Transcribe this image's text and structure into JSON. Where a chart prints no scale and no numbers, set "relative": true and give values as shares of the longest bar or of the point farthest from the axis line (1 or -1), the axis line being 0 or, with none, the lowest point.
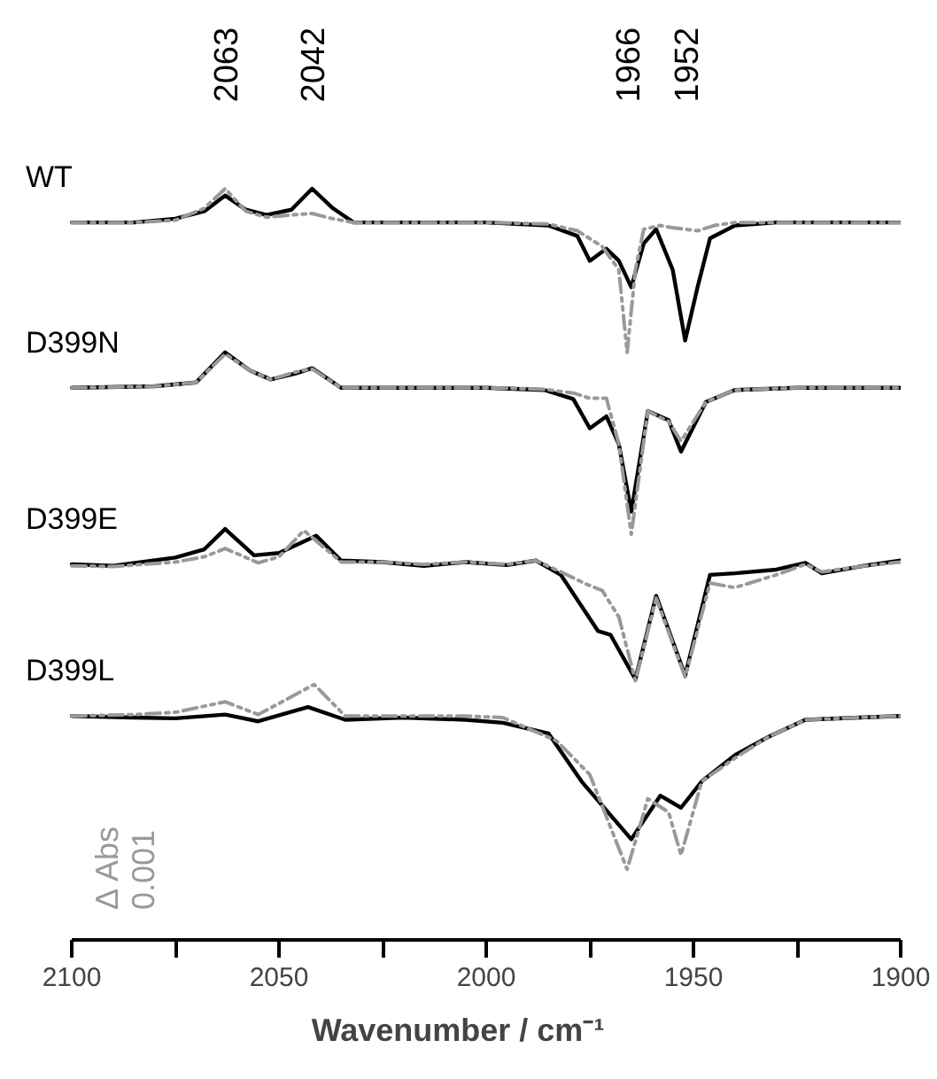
{
  "chart_data": {
    "type": "line",
    "relative": true,
    "xlabel": "Wavenumber / cm⁻¹",
    "xlim": [
      2100,
      1900
    ],
    "xticks": [
      2100,
      {
        "value": 2075,
        "label": null
      },
      2050,
      {
        "value": 2025,
        "label": null
      },
      2000,
      {
        "value": 1975,
        "label": null
      },
      1950,
      {
        "value": 1925,
        "label": null
      },
      1900
    ],
    "grid": false,
    "tick_labels": "x",
    "annotations": [
      "2063",
      "2042",
      "1966",
      "1952",
      "Δ Abs",
      "0.001"
    ],
    "series": [
      {
        "name": "WT",
        "color": "#000000",
        "line_style": "solid",
        "x": [
          2100,
          2085,
          2075,
          2068,
          2063,
          2058,
          2053,
          2047,
          2042,
          2037,
          2032,
          2020,
          2000,
          1985,
          1978,
          1975,
          1971,
          1968,
          1965,
          1962,
          1959,
          1955,
          1952,
          1949,
          1946,
          1940,
          1930,
          1915,
          1900
        ],
        "values": [
          0.955,
          0.955,
          0.96,
          0.97,
          0.991,
          0.972,
          0.965,
          0.972,
          1.0,
          0.974,
          0.955,
          0.955,
          0.955,
          0.951,
          0.937,
          0.904,
          0.92,
          0.904,
          0.869,
          0.927,
          0.946,
          0.892,
          0.798,
          0.869,
          0.934,
          0.951,
          0.955,
          0.955,
          0.955
        ]
      },
      {
        "color": "#999999",
        "line_style": "dashed",
        "x": [
          2100,
          2085,
          2075,
          2068,
          2063,
          2058,
          2053,
          2047,
          2042,
          2037,
          2032,
          2000,
          1985,
          1978,
          1972,
          1968,
          1966,
          1964,
          1962,
          1958,
          1955,
          1952,
          1949,
          1945,
          1940,
          1930,
          1900
        ],
        "values": [
          0.955,
          0.955,
          0.958,
          0.974,
          1.0,
          0.97,
          0.962,
          0.965,
          0.967,
          0.96,
          0.955,
          0.955,
          0.953,
          0.944,
          0.923,
          0.892,
          0.782,
          0.892,
          0.946,
          0.951,
          0.948,
          0.946,
          0.944,
          0.951,
          0.955,
          0.955,
          0.955
        ]
      },
      {
        "name": "D399N",
        "color": "#000000",
        "line_style": "solid",
        "x": [
          2100,
          2080,
          2070,
          2063,
          2057,
          2052,
          2046,
          2042,
          2035,
          2000,
          1986,
          1979,
          1975,
          1971,
          1968,
          1965,
          1961,
          1956,
          1953,
          1947,
          1940,
          1925,
          1900
        ],
        "values": [
          0.735,
          0.737,
          0.742,
          0.782,
          0.758,
          0.746,
          0.754,
          0.761,
          0.735,
          0.735,
          0.732,
          0.72,
          0.681,
          0.697,
          0.66,
          0.57,
          0.704,
          0.692,
          0.65,
          0.716,
          0.732,
          0.735,
          0.735
        ]
      },
      {
        "color": "#999999",
        "line_style": "dashed",
        "x": [
          2100,
          2080,
          2070,
          2063,
          2057,
          2052,
          2046,
          2042,
          2035,
          2000,
          1986,
          1979,
          1975,
          1971,
          1968,
          1965,
          1961,
          1956,
          1953,
          1947,
          1940,
          1925,
          1900
        ],
        "values": [
          0.735,
          0.737,
          0.742,
          0.78,
          0.758,
          0.746,
          0.756,
          0.76,
          0.735,
          0.735,
          0.733,
          0.728,
          0.721,
          0.721,
          0.66,
          0.54,
          0.704,
          0.69,
          0.664,
          0.716,
          0.732,
          0.735,
          0.735
        ]
      },
      {
        "name": "D399E",
        "color": "#000000",
        "line_style": "solid",
        "x": [
          2100,
          2090,
          2075,
          2068,
          2063,
          2056,
          2050,
          2041,
          2035,
          2025,
          2015,
          2005,
          1995,
          1988,
          1982,
          1973,
          1970,
          1964,
          1959,
          1952,
          1946,
          1940,
          1930,
          1923,
          1919,
          1910,
          1900
        ],
        "values": [
          0.5,
          0.498,
          0.509,
          0.52,
          0.547,
          0.512,
          0.515,
          0.538,
          0.505,
          0.503,
          0.498,
          0.503,
          0.499,
          0.505,
          0.486,
          0.411,
          0.406,
          0.347,
          0.458,
          0.352,
          0.486,
          0.488,
          0.493,
          0.502,
          0.488,
          0.497,
          0.505
        ]
      },
      {
        "color": "#999999",
        "line_style": "dashed",
        "x": [
          2100,
          2090,
          2075,
          2068,
          2063,
          2055,
          2050,
          2044,
          2035,
          2025,
          2015,
          2005,
          1995,
          1988,
          1982,
          1976,
          1972,
          1968,
          1964,
          1959,
          1952,
          1946,
          1940,
          1930,
          1923,
          1919,
          1910,
          1900
        ],
        "values": [
          0.498,
          0.497,
          0.503,
          0.51,
          0.521,
          0.502,
          0.51,
          0.545,
          0.503,
          0.503,
          0.5,
          0.503,
          0.5,
          0.505,
          0.49,
          0.474,
          0.465,
          0.43,
          0.345,
          0.455,
          0.35,
          0.475,
          0.469,
          0.486,
          0.5,
          0.49,
          0.497,
          0.503
        ]
      },
      {
        "name": "D399L",
        "color": "#000000",
        "line_style": "solid",
        "x": [
          2100,
          2085,
          2075,
          2063,
          2055,
          2043,
          2034,
          2020,
          2005,
          1996,
          1985,
          1977,
          1965,
          1958,
          1953,
          1948,
          1940,
          1932,
          1923,
          1910,
          1900
        ],
        "values": [
          0.298,
          0.296,
          0.295,
          0.3,
          0.291,
          0.31,
          0.293,
          0.296,
          0.293,
          0.289,
          0.275,
          0.211,
          0.134,
          0.192,
          0.176,
          0.211,
          0.246,
          0.27,
          0.293,
          0.296,
          0.298
        ]
      },
      {
        "color": "#999999",
        "line_style": "dashed",
        "x": [
          2100,
          2085,
          2075,
          2063,
          2055,
          2041.5,
          2034,
          2020,
          2005,
          1996,
          1983,
          1975,
          1966,
          1961,
          1956,
          1953,
          1948,
          1940,
          1932,
          1923,
          1910,
          1900
        ],
        "values": [
          0.298,
          0.3,
          0.303,
          0.317,
          0.3,
          0.34,
          0.298,
          0.298,
          0.298,
          0.296,
          0.265,
          0.22,
          0.094,
          0.188,
          0.17,
          0.113,
          0.211,
          0.242,
          0.27,
          0.293,
          0.296,
          0.298
        ]
      }
    ]
  }
}
